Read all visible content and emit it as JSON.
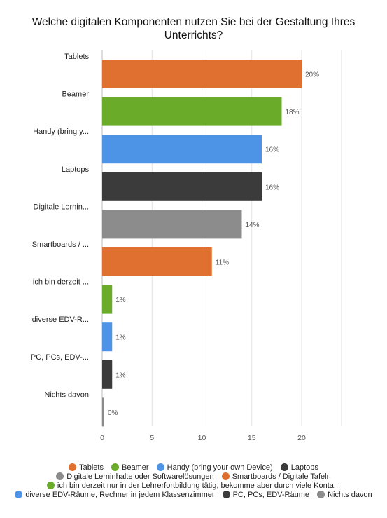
{
  "chart_data": {
    "type": "bar",
    "orientation": "horizontal",
    "title": "Welche digitalen Komponenten nutzen Sie bei der Gestaltung Ihres Unterrichts?",
    "categories": [
      "Tablets",
      "Beamer",
      "Handy (bring y...",
      "Laptops",
      "Digitale Lernin...",
      "Smartboards / ...",
      "ich bin derzeit ...",
      "diverse EDV-R...",
      "PC, PCs, EDV-...",
      "Nichts davon"
    ],
    "values": [
      20,
      18,
      16,
      16,
      14,
      11,
      1,
      1,
      1,
      0
    ],
    "value_labels": [
      "20%",
      "18%",
      "16%",
      "16%",
      "14%",
      "11%",
      "1%",
      "1%",
      "1%",
      "0%"
    ],
    "colors": [
      "#e07030",
      "#6aab2a",
      "#4d94e6",
      "#3b3b3b",
      "#8c8c8c",
      "#e07030",
      "#6aab2a",
      "#4d94e6",
      "#3b3b3b",
      "#8c8c8c"
    ],
    "xlim": [
      0,
      24
    ],
    "xticks": [
      0,
      5,
      10,
      15,
      20
    ],
    "xlabel": "",
    "ylabel": "",
    "grid": true,
    "legend": {
      "placement": "bottom",
      "entries": [
        {
          "name": "Tablets",
          "color": "#e07030"
        },
        {
          "name": "Beamer",
          "color": "#6aab2a"
        },
        {
          "name": "Handy (bring your own Device)",
          "color": "#4d94e6"
        },
        {
          "name": "Laptops",
          "color": "#3b3b3b"
        },
        {
          "name": "Digitale Lerninhalte oder Softwarelösungen",
          "color": "#8c8c8c"
        },
        {
          "name": "Smartboards / Digitale Tafeln",
          "color": "#e07030"
        },
        {
          "name": "ich bin derzeit nur in der Lehrerfortbildung tätig, bekomme aber durch viele Konta...",
          "color": "#6aab2a"
        },
        {
          "name": "diverse EDV-Räume, Rechner in jedem Klassenzimmer",
          "color": "#4d94e6"
        },
        {
          "name": "PC, PCs, EDV-Räume",
          "color": "#3b3b3b"
        },
        {
          "name": "Nichts davon",
          "color": "#8c8c8c"
        }
      ]
    }
  }
}
